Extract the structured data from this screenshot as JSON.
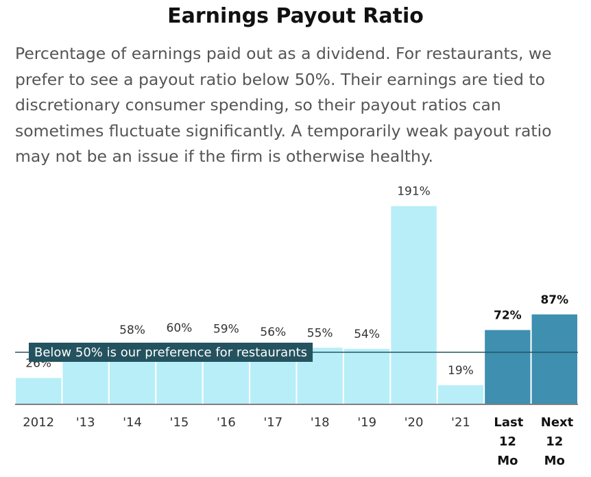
{
  "chart_data": {
    "type": "bar",
    "title": "Earnings Payout Ratio",
    "subtitle": "Percentage of earnings paid out as a dividend. For restaurants, we prefer to see a payout ratio below 50%. Their earnings are tied to discretionary consumer spending, so their payout ratios can sometimes fluctuate significantly. A temporarily weak payout ratio may not be an issue if the firm is otherwise healthy.",
    "categories": [
      "2012",
      "'13",
      "'14",
      "'15",
      "'16",
      "'17",
      "'18",
      "'19",
      "'20",
      "'21",
      "Last 12 Mo",
      "Next 12 Mo"
    ],
    "values": [
      26,
      50,
      58,
      60,
      59,
      56,
      55,
      54,
      191,
      19,
      72,
      87
    ],
    "value_labels": [
      "26%",
      null,
      "58%",
      "60%",
      "59%",
      "56%",
      "55%",
      "54%",
      "191%",
      "19%",
      "72%",
      "87%"
    ],
    "colors": [
      "#b8eef8",
      "#b8eef8",
      "#b8eef8",
      "#b8eef8",
      "#b8eef8",
      "#b8eef8",
      "#b8eef8",
      "#b8eef8",
      "#b8eef8",
      "#b8eef8",
      "#3e8fb0",
      "#3e8fb0"
    ],
    "emphasis": [
      false,
      false,
      false,
      false,
      false,
      false,
      false,
      false,
      false,
      false,
      true,
      true
    ],
    "ylim": [
      0,
      200
    ],
    "reference_line": {
      "value": 50,
      "label": "Below 50% is our preference for restaurants",
      "color": "#24535f"
    }
  }
}
